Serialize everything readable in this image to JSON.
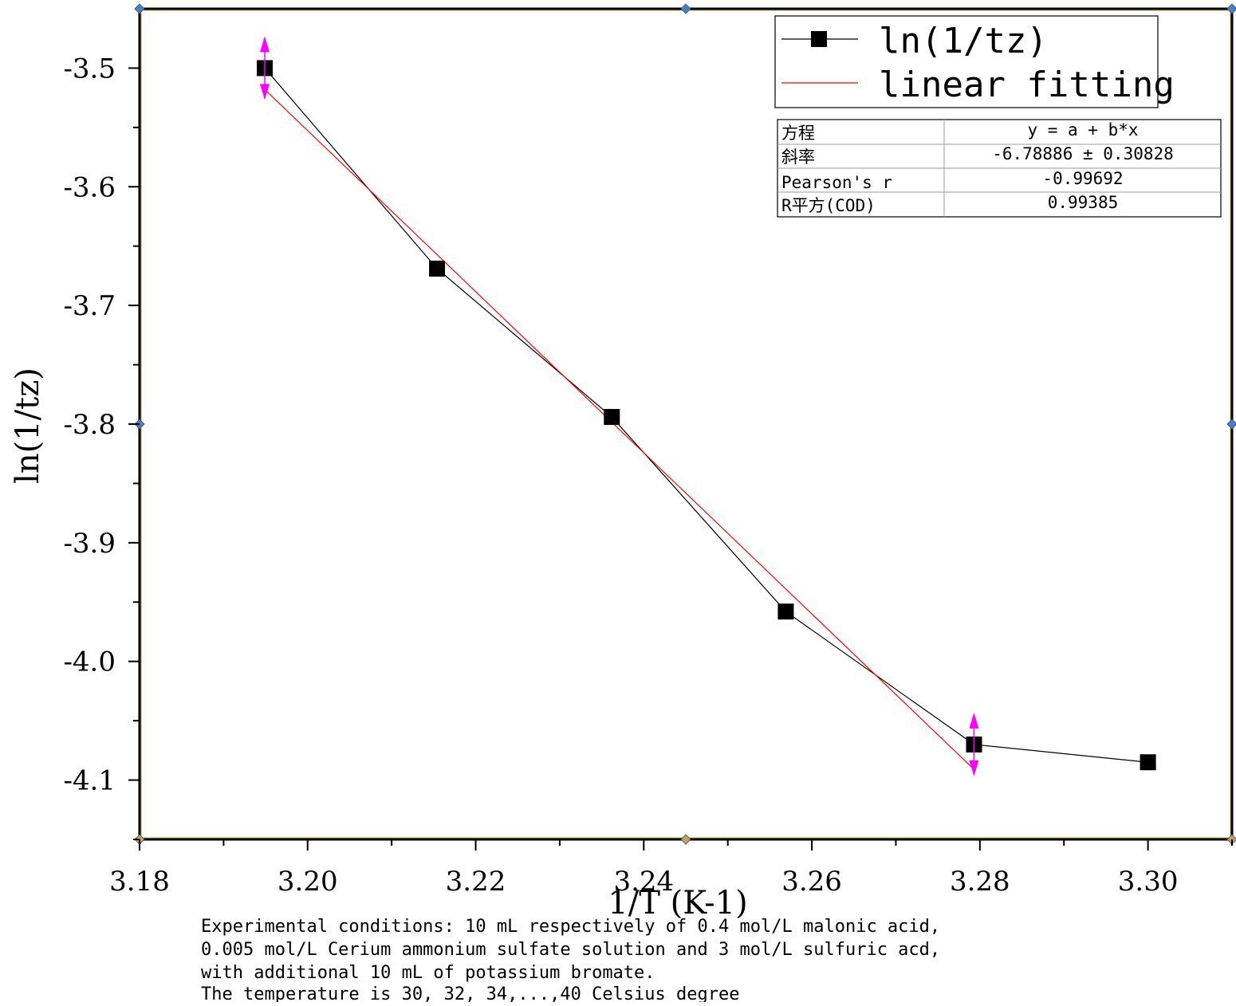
{
  "chart_data": {
    "type": "scatter",
    "xlabel": "1/T (K-1)",
    "ylabel": "ln(1/tz)",
    "xlim": [
      3.18,
      3.31
    ],
    "ylim": [
      -4.15,
      -3.45
    ],
    "xticks": [
      "3.18",
      "3.20",
      "3.22",
      "3.24",
      "3.26",
      "3.28",
      "3.30"
    ],
    "xtick_values": [
      3.18,
      3.2,
      3.22,
      3.24,
      3.26,
      3.28,
      3.3
    ],
    "yticks": [
      "-3.5",
      "-3.6",
      "-3.7",
      "-3.8",
      "-3.9",
      "-4.0",
      "-4.1"
    ],
    "ytick_values": [
      -3.5,
      -3.6,
      -3.7,
      -3.8,
      -3.9,
      -4.0,
      -4.1
    ],
    "series": [
      {
        "name": "ln(1/tz)",
        "style": "line+square-markers",
        "color": "#000000",
        "x": [
          3.1949,
          3.2154,
          3.2362,
          3.2569,
          3.2793,
          3.3
        ],
        "y": [
          -3.5,
          -3.669,
          -3.794,
          -3.958,
          -4.07,
          -4.085
        ]
      },
      {
        "name": "linear fitting",
        "style": "line",
        "color": "#ff0000",
        "x": [
          3.1949,
          3.2793
        ],
        "y": [
          -3.518,
          -4.091
        ]
      }
    ],
    "fit_range_markers_color": "#ff00ff",
    "fit_range_x": [
      3.1949,
      3.2793
    ],
    "legend_position": "top-right",
    "fit_table": {
      "rows": [
        [
          "方程",
          "y = a + b*x"
        ],
        [
          "斜率",
          "-6.78886 ± 0.30828"
        ],
        [
          "Pearson's r",
          "-0.99692"
        ],
        [
          "R平方(COD)",
          "0.99385"
        ]
      ]
    }
  },
  "caption": [
    "Experimental conditions: 10 mL respectively of 0.4 mol/L malonic acid,",
    "0.005 mol/L Cerium ammonium sulfate solution and 3 mol/L sulfuric acd,",
    "with additional 10 mL of potassium bromate.",
    "The temperature is 30, 32, 34,...,40 Celsius degree"
  ]
}
